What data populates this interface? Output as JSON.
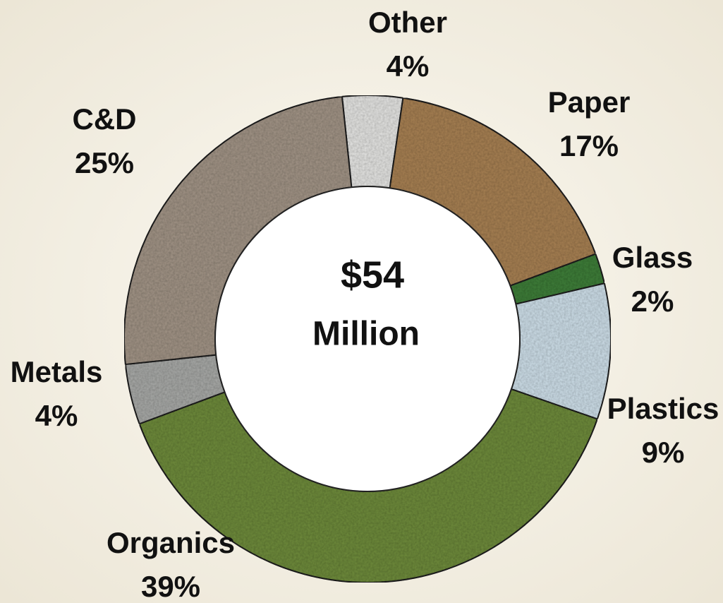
{
  "chart_data": {
    "type": "donut",
    "center_label": "$54",
    "center_sublabel": "Million",
    "categories": [
      "Other",
      "Paper",
      "Glass",
      "Plastics",
      "Organics",
      "Metals",
      "C&D"
    ],
    "values": [
      4,
      17,
      2,
      9,
      39,
      4,
      25
    ],
    "value_labels": [
      "4%",
      "17%",
      "2%",
      "9%",
      "39%",
      "4%",
      "25%"
    ],
    "colors": [
      "#e6e6e4",
      "#a98255",
      "#3f7f3a",
      "#cfe0ea",
      "#6f8c3c",
      "#a9aaa8",
      "#a39587"
    ]
  }
}
